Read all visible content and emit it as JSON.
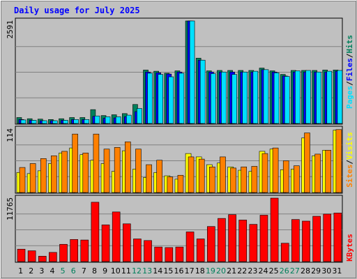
{
  "title": "Daily usage for July 2025",
  "colors": {
    "background": "#c0c0c0",
    "title": "#0000ff",
    "hits": "#00805c",
    "files": "#0000ff",
    "pages": "#00e0ff",
    "visits": "#ffff00",
    "sites": "#ff8000",
    "kbytes": "#ff0000",
    "gridline": "#808080",
    "weekend_label": "#00805c",
    "weekday_label": "#000000"
  },
  "right_labels": {
    "top": {
      "hits": "Hits",
      "files": "Files",
      "pages": "Pages",
      "sep": "/"
    },
    "middle": {
      "visits": "Visits",
      "sites": "Sites",
      "sep": "/"
    },
    "bottom": {
      "kbytes": "KBytes"
    }
  },
  "chart_data": {
    "type": "bar",
    "title": "Daily usage for July 2025",
    "categories": [
      "1",
      "2",
      "3",
      "4",
      "5",
      "6",
      "7",
      "8",
      "9",
      "10",
      "11",
      "12",
      "13",
      "14",
      "15",
      "16",
      "17",
      "18",
      "19",
      "20",
      "21",
      "22",
      "23",
      "24",
      "25",
      "26",
      "27",
      "28",
      "29",
      "30",
      "31"
    ],
    "weekend_days": [
      "5",
      "6",
      "12",
      "13",
      "19",
      "20",
      "26",
      "27"
    ],
    "panels": [
      {
        "name": "top",
        "max_label": "2591",
        "ylim": [
          0,
          2591
        ],
        "series": [
          {
            "name": "Hits",
            "values": [
              150,
              120,
              110,
              100,
              120,
              150,
              150,
              350,
              200,
              220,
              250,
              480,
              1350,
              1320,
              1270,
              1330,
              2591,
              1650,
              1330,
              1340,
              1340,
              1340,
              1340,
              1400,
              1330,
              1240,
              1340,
              1340,
              1340,
              1350,
              1350
            ]
          },
          {
            "name": "Files",
            "values": [
              100,
              80,
              70,
              70,
              80,
              100,
              100,
              180,
              130,
              140,
              170,
              300,
              1300,
              1280,
              1250,
              1300,
              2591,
              1600,
              1300,
              1300,
              1300,
              1300,
              1300,
              1360,
              1300,
              1200,
              1300,
              1300,
              1300,
              1300,
              1320
            ]
          },
          {
            "name": "Pages",
            "values": [
              90,
              80,
              70,
              70,
              80,
              100,
              100,
              190,
              170,
              170,
              210,
              380,
              1270,
              1240,
              1180,
              1270,
              2591,
              1600,
              1260,
              1300,
              1240,
              1300,
              1320,
              1360,
              1280,
              1190,
              1330,
              1340,
              1300,
              1320,
              1340
            ]
          }
        ]
      },
      {
        "name": "middle",
        "max_label": "114",
        "ylim": [
          0,
          114
        ],
        "series": [
          {
            "name": "Visits",
            "values": [
              36,
              34,
              39,
              52,
              71,
              80,
              68,
              58,
              52,
              38,
              75,
              42,
              27,
              36,
              30,
              24,
              70,
              64,
              50,
              53,
              46,
              40,
              38,
              74,
              78,
              41,
              42,
              98,
              66,
              76,
              112
            ]
          },
          {
            "name": "Sites",
            "values": [
              45,
              52,
              61,
              66,
              74,
              105,
              71,
              105,
              78,
              81,
              91,
              78,
              50,
              58,
              28,
              31,
              64,
              60,
              46,
              64,
              44,
              46,
              47,
              70,
              80,
              57,
              48,
              107,
              69,
              76,
              113
            ]
          }
        ]
      },
      {
        "name": "bottom",
        "max_label": "11765",
        "ylim": [
          0,
          11765
        ],
        "series": [
          {
            "name": "KBytes",
            "values": [
              2300,
              2000,
              1000,
              1700,
              3200,
              4100,
              4000,
              11000,
              6800,
              9200,
              7000,
              4200,
              3900,
              2700,
              2600,
              2700,
              5500,
              4200,
              6500,
              8000,
              8700,
              7700,
              6900,
              8600,
              11765,
              3400,
              7800,
              7500,
              8400,
              8800,
              9000
            ]
          }
        ]
      }
    ]
  }
}
